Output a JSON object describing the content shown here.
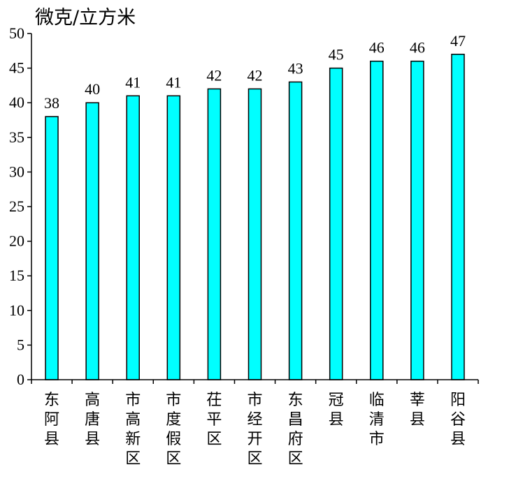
{
  "chart_data": {
    "type": "bar",
    "title": "",
    "xlabel": "",
    "ylabel": "微克/立方米",
    "ylim": [
      0,
      50
    ],
    "yticks": [
      0,
      5,
      10,
      15,
      20,
      25,
      30,
      35,
      40,
      45,
      50
    ],
    "grid": false,
    "legend": "none",
    "bar_color": "#00FFFF",
    "bar_edge_color": "#000000",
    "categories": [
      "东阿县",
      "高唐县",
      "市高新区",
      "市度假区",
      "茌平区",
      "市经开区",
      "东昌府区",
      "冠县",
      "临清市",
      "莘县",
      "阳谷县"
    ],
    "values": [
      38,
      40,
      41,
      41,
      42,
      42,
      43,
      45,
      46,
      46,
      47
    ],
    "data_labels": [
      "38",
      "40",
      "41",
      "41",
      "42",
      "42",
      "43",
      "45",
      "46",
      "46",
      "47"
    ]
  }
}
